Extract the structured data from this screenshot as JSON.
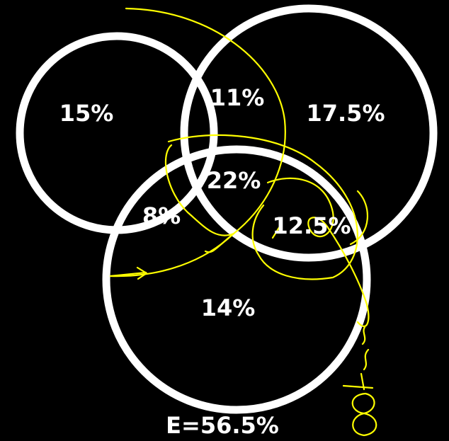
{
  "colors": {
    "background": "#000000",
    "circle_outline": "#ffffff",
    "label_text": "#ffffff",
    "annotation_ink": "#ffff00"
  },
  "regions": {
    "only_a": "15%",
    "a_and_b": "11%",
    "only_b": "17.5%",
    "a_b_and_c": "22%",
    "a_and_c": "8%",
    "b_and_c": "12.5%",
    "only_c": "14%"
  },
  "total": "E=56.5%"
}
